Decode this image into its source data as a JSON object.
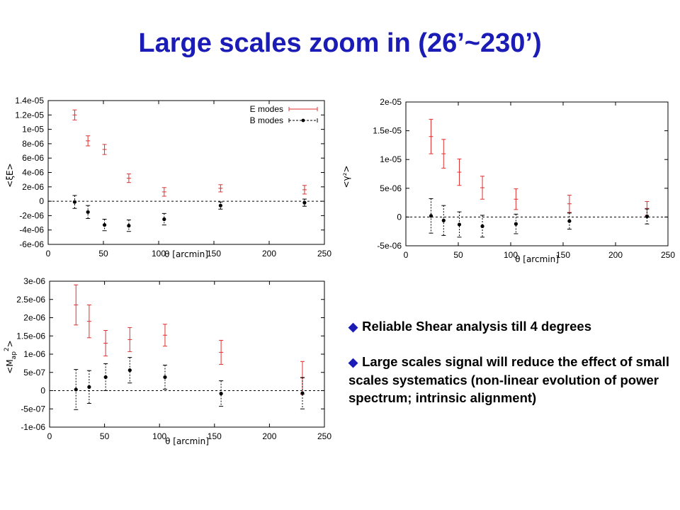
{
  "slide": {
    "title": "Large scales zoom in (26’~230’)",
    "bullets": [
      "Reliable Shear analysis till 4 degrees",
      "Large scales signal will reduce the effect of small scales systematics (non-linear evolution of power spectrum; intrinsic alignment)"
    ],
    "bullet_icon": "diamond-icon"
  },
  "colors": {
    "title": "#1b1bb6",
    "e_modes": "#e03030",
    "b_modes": "#000000"
  },
  "chart_data": [
    {
      "type": "scatter",
      "title": "",
      "xlabel": "θ [arcmin]",
      "ylabel": "<ξE>",
      "xlim": [
        0,
        250
      ],
      "ylim": [
        -6e-06,
        1.4e-05
      ],
      "xticks": [
        0,
        50,
        100,
        150,
        200,
        250
      ],
      "yticks": [
        -6e-06,
        -4e-06,
        -2e-06,
        0,
        2e-06,
        4e-06,
        6e-06,
        8e-06,
        1e-05,
        1.2e-05,
        1.4e-05
      ],
      "ytick_labels": [
        "-6e-06",
        "-4e-06",
        "-2e-06",
        "0",
        "2e-06",
        "4e-06",
        "6e-06",
        "8e-06",
        "1e-05",
        "1.2e-05",
        "1.4e-05"
      ],
      "zero_line": true,
      "legend": "top-right",
      "series": [
        {
          "name": "E modes",
          "style": "errorbar",
          "color": "#e03030",
          "x": [
            24,
            36,
            51,
            73,
            105,
            156,
            232
          ],
          "y": [
            1.2e-05,
            8.4e-06,
            7.2e-06,
            3.2e-06,
            1.3e-06,
            1.8e-06,
            1.6e-06
          ],
          "err": [
            7e-07,
            7e-07,
            7e-07,
            6e-07,
            6e-07,
            5e-07,
            6e-07
          ]
        },
        {
          "name": "B modes",
          "style": "errorbar_dashed",
          "color": "#000000",
          "x": [
            24,
            36,
            51,
            73,
            105,
            156,
            232
          ],
          "y": [
            -1e-07,
            -1.5e-06,
            -3.3e-06,
            -3.4e-06,
            -2.5e-06,
            -6e-07,
            -2e-07
          ],
          "err": [
            9e-07,
            9e-07,
            8e-07,
            8e-07,
            8e-07,
            5e-07,
            5e-07
          ]
        }
      ]
    },
    {
      "type": "scatter",
      "title": "",
      "xlabel": "θ [arcmin]",
      "ylabel": "<γ²>",
      "xlim": [
        0,
        250
      ],
      "ylim": [
        -5e-06,
        2e-05
      ],
      "xticks": [
        0,
        50,
        100,
        150,
        200,
        250
      ],
      "yticks": [
        -5e-06,
        0,
        5e-06,
        1e-05,
        1.5e-05,
        2e-05
      ],
      "ytick_labels": [
        "-5e-06",
        "0",
        "5e-06",
        "1e-05",
        "1.5e-05",
        "2e-05"
      ],
      "zero_line": true,
      "series": [
        {
          "style": "errorbar",
          "color": "#e03030",
          "x": [
            24,
            36,
            51,
            73,
            105,
            156,
            230
          ],
          "y": [
            1.4e-05,
            1.1e-05,
            7.8e-06,
            5.1e-06,
            3.1e-06,
            2.3e-06,
            1.5e-06
          ],
          "err": [
            3e-06,
            2.5e-06,
            2.3e-06,
            2e-06,
            1.8e-06,
            1.5e-06,
            1.2e-06
          ]
        },
        {
          "style": "errorbar_dashed",
          "color": "#000000",
          "x": [
            24,
            36,
            51,
            73,
            105,
            156,
            230
          ],
          "y": [
            2e-07,
            -6e-07,
            -1.3e-06,
            -1.6e-06,
            -1.2e-06,
            -7e-07,
            1e-07
          ],
          "err": [
            3e-06,
            2.6e-06,
            2.2e-06,
            1.9e-06,
            1.7e-06,
            1.4e-06,
            1.3e-06
          ]
        }
      ]
    },
    {
      "type": "scatter",
      "title": "",
      "xlabel": "θ [arcmin]",
      "ylabel": "<M",
      "ylabel_sub": "ap",
      "ylabel_sup": "2",
      "ylabel_end": ">",
      "xlim": [
        0,
        250
      ],
      "ylim": [
        -1e-06,
        3e-06
      ],
      "xticks": [
        0,
        50,
        100,
        150,
        200,
        250
      ],
      "yticks": [
        -1e-06,
        -5e-07,
        0,
        5e-07,
        1e-06,
        1.5e-06,
        2e-06,
        2.5e-06,
        3e-06
      ],
      "ytick_labels": [
        "-1e-06",
        "-5e-07",
        "0",
        "5e-07",
        "1e-06",
        "1.5e-06",
        "2e-06",
        "2.5e-06",
        "3e-06"
      ],
      "zero_line": true,
      "series": [
        {
          "style": "errorbar",
          "color": "#e03030",
          "x": [
            24,
            36,
            51,
            73,
            105,
            156,
            230
          ],
          "y": [
            2.35e-06,
            1.9e-06,
            1.3e-06,
            1.4e-06,
            1.52e-06,
            1.05e-06,
            3.5e-07
          ],
          "err": [
            5.5e-07,
            4.5e-07,
            3.5e-07,
            3.3e-07,
            3e-07,
            3.3e-07,
            4.5e-07
          ]
        },
        {
          "style": "errorbar_dashed",
          "color": "#000000",
          "x": [
            24,
            36,
            51,
            73,
            105,
            156,
            230
          ],
          "y": [
            3e-08,
            1e-07,
            3.7e-07,
            5.6e-07,
            3.7e-07,
            -8e-08,
            -7e-08
          ],
          "err": [
            5.5e-07,
            4.5e-07,
            3.7e-07,
            3.5e-07,
            3.3e-07,
            3.5e-07,
            4.3e-07
          ]
        }
      ]
    }
  ]
}
